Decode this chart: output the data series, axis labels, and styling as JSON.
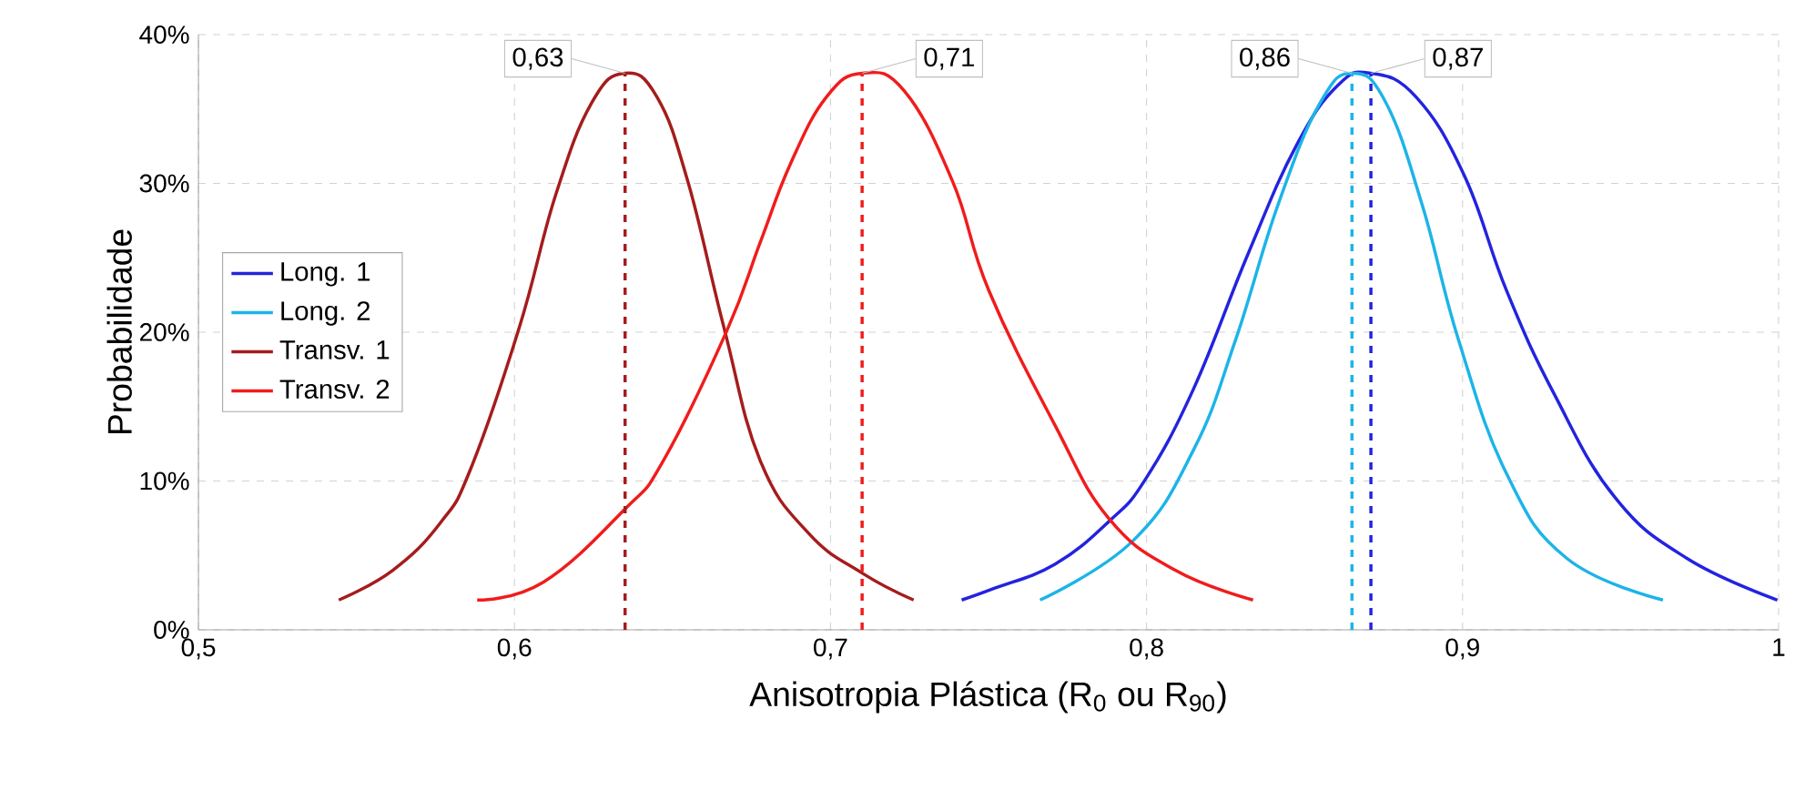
{
  "chart_data": {
    "type": "line",
    "xlabel": "Anisotropia Plástica (R$_{0}$ ou R$_{90}$)",
    "ylabel": "Probabilidade",
    "xlim": [
      0.5,
      1.0
    ],
    "xticks": [
      {
        "value": 0.5,
        "label": "0,5"
      },
      {
        "value": 0.6,
        "label": "0,6"
      },
      {
        "value": 0.7,
        "label": "0,7"
      },
      {
        "value": 0.8,
        "label": "0,8"
      },
      {
        "value": 0.9,
        "label": "0,9"
      },
      1
    ],
    "ylim": [
      0,
      40
    ],
    "yticks": [
      {
        "value": 0,
        "label": "0%"
      },
      {
        "value": 10,
        "label": "10%"
      },
      {
        "value": 20,
        "label": "20%"
      },
      {
        "value": 30,
        "label": "30%"
      },
      {
        "value": 40,
        "label": "40%"
      }
    ],
    "grid": true,
    "legend": "left",
    "line_style": "solid",
    "marker": "none",
    "series": [
      {
        "name": "Long. 1",
        "color": "#2323e0",
        "x": [
          0.7415,
          0.752,
          0.771,
          0.7882,
          0.7996,
          0.8149,
          0.832,
          0.8473,
          0.8606,
          0.871,
          0.8853,
          0.9006,
          0.9139,
          0.9291,
          0.9482,
          0.971,
          0.9996
        ],
        "values": [
          2.0,
          2.8,
          4.4,
          7.3,
          10.1,
          16.2,
          25.2,
          32.5,
          36.6,
          37.4,
          35.8,
          30.5,
          22.8,
          15.8,
          8.9,
          4.8,
          2.0
        ]
      },
      {
        "name": "Long. 2",
        "color": "#1cb4e8",
        "x": [
          0.7663,
          0.7958,
          0.8149,
          0.8282,
          0.8415,
          0.8549,
          0.8653,
          0.8758,
          0.8873,
          0.8987,
          0.9139,
          0.933,
          0.9634
        ],
        "values": [
          2.0,
          6.0,
          12.1,
          19.5,
          28.5,
          35.4,
          37.4,
          35.4,
          28.5,
          19.5,
          10.5,
          4.8,
          2.0
        ]
      },
      {
        "name": "Transv. 1",
        "color": "#a51c1c",
        "x": [
          0.5444,
          0.5615,
          0.5766,
          0.5863,
          0.6015,
          0.613,
          0.6244,
          0.6349,
          0.6451,
          0.6549,
          0.6663,
          0.6777,
          0.693,
          0.7101,
          0.7263
        ],
        "values": [
          2.0,
          4.0,
          7.2,
          10.9,
          20.3,
          29.2,
          35.4,
          37.4,
          35.8,
          30.1,
          20.3,
          11.4,
          6.5,
          3.8,
          2.0
        ]
      },
      {
        "name": "Transv. 2",
        "color": "#f01c1c",
        "x": [
          0.5882,
          0.6091,
          0.6349,
          0.6472,
          0.6672,
          0.6777,
          0.6873,
          0.6987,
          0.7101,
          0.7234,
          0.7387,
          0.7501,
          0.7709,
          0.788,
          0.8091,
          0.8337
        ],
        "values": [
          2.0,
          3.2,
          8.1,
          11.4,
          20.1,
          26.0,
          31.3,
          35.8,
          37.4,
          36.2,
          30.1,
          22.8,
          13.8,
          7.5,
          4.0,
          2.0
        ]
      }
    ],
    "ref_lines": [
      {
        "axis": "x",
        "value": 0.635,
        "color": "#a51c1c",
        "line_style": "dashed"
      },
      {
        "axis": "x",
        "value": 0.71,
        "color": "#f01c1c",
        "line_style": "dashed"
      },
      {
        "axis": "x",
        "value": 0.865,
        "color": "#1cb4e8",
        "line_style": "dashed"
      },
      {
        "axis": "x",
        "value": 0.871,
        "color": "#2323e0",
        "line_style": "dashed"
      }
    ],
    "annotations": [
      {
        "text": "0,63",
        "x": 0.635,
        "y": 37.4
      },
      {
        "text": "0,71",
        "x": 0.71,
        "y": 37.4
      },
      {
        "text": "0,86",
        "x": 0.865,
        "y": 37.4
      },
      {
        "text": "0,87",
        "x": 0.871,
        "y": 37.4
      }
    ]
  }
}
